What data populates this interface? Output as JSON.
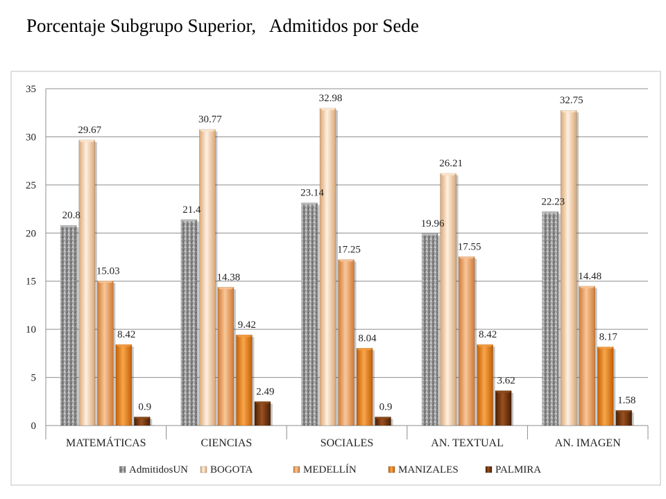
{
  "page": {
    "title": "Porcentaje Subgrupo Superior,   Admitidos por Sede"
  },
  "chart_data": {
    "type": "bar",
    "title": "",
    "xlabel": "",
    "ylabel": "",
    "ylim": [
      0,
      35
    ],
    "y_ticks": [
      "0",
      "5",
      "10",
      "15",
      "20",
      "25",
      "30",
      "35"
    ],
    "grid": true,
    "legend_position": "bottom",
    "categories": [
      "MATEMÁTICAS",
      "CIENCIAS",
      "SOCIALES",
      "AN. TEXTUAL",
      "AN. IMAGEN"
    ],
    "series": [
      {
        "name": "AdmitidosUN",
        "color": "#9a9a9a",
        "values": [
          20.8,
          21.4,
          23.14,
          19.96,
          22.23
        ],
        "labels": [
          "20.8",
          "21.4",
          "23.14",
          "19.96",
          "22.23"
        ]
      },
      {
        "name": "BOGOTA",
        "color": "#f6d3b0",
        "values": [
          29.67,
          30.77,
          32.98,
          26.21,
          32.75
        ],
        "labels": [
          "29.67",
          "30.77",
          "32.98",
          "26.21",
          "32.75"
        ]
      },
      {
        "name": "MEDELLÍN",
        "color": "#f2a565",
        "values": [
          15.03,
          14.38,
          17.25,
          17.55,
          14.48
        ],
        "labels": [
          "15.03",
          "14.38",
          "17.25",
          "17.55",
          "14.48"
        ]
      },
      {
        "name": "MANIZALES",
        "color": "#ec8419",
        "values": [
          8.42,
          9.42,
          8.04,
          8.42,
          8.17
        ],
        "labels": [
          "8.42",
          "9.42",
          "8.04",
          "8.42",
          "8.17"
        ]
      },
      {
        "name": "PALMIRA",
        "color": "#7a3a0a",
        "values": [
          0.9,
          2.49,
          0.9,
          3.62,
          1.58
        ],
        "labels": [
          "0.9",
          "2.49",
          "0.9",
          "3.62",
          "1.58"
        ]
      }
    ]
  }
}
